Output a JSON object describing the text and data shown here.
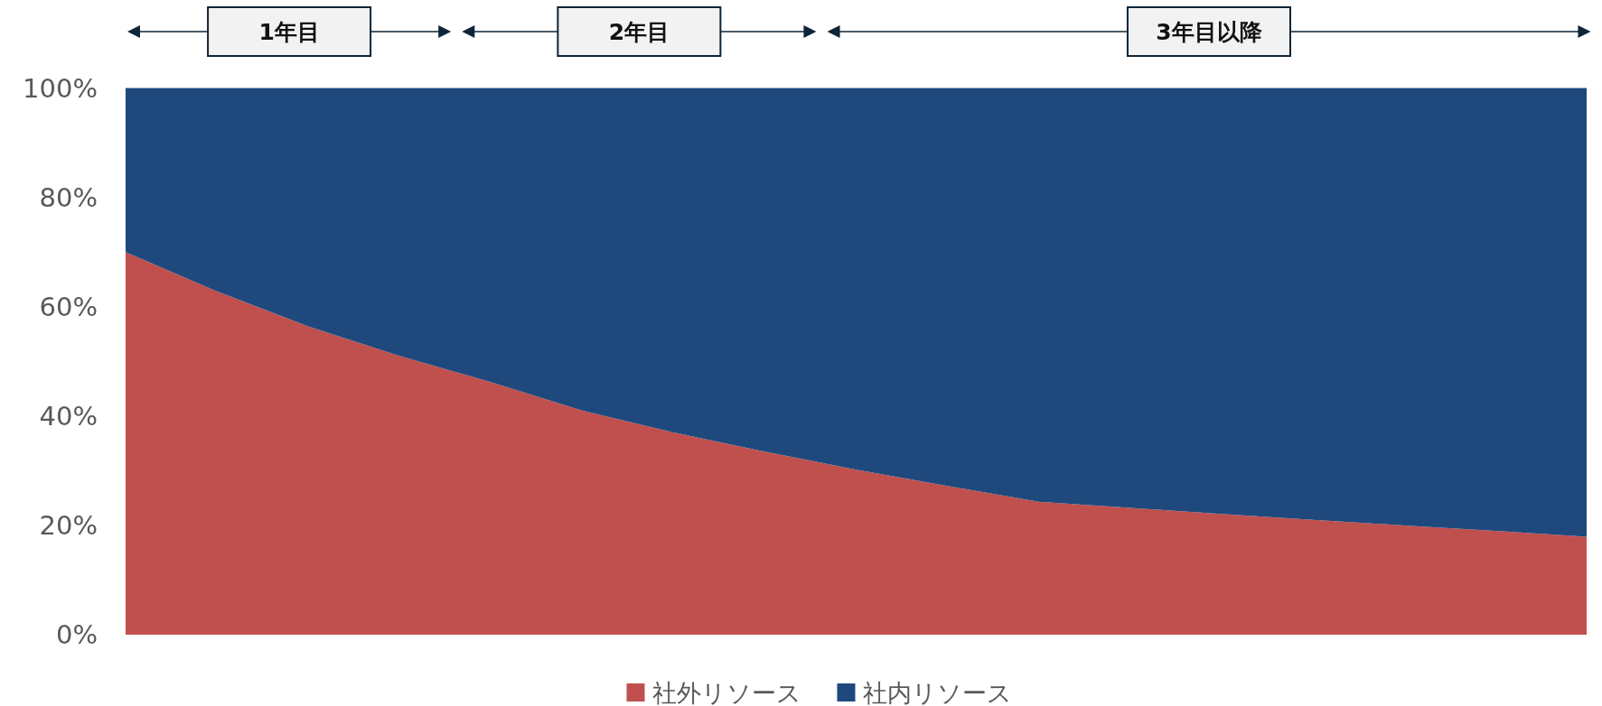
{
  "chart_data": {
    "type": "area",
    "stacked": true,
    "categories": [
      null,
      null,
      null,
      null,
      null,
      null,
      null,
      null,
      null,
      null,
      null,
      null,
      null,
      null,
      null,
      null,
      null
    ],
    "series": [
      {
        "name": "社外リソース",
        "color": "#c0504d",
        "values": [
          70,
          62.8,
          56.4,
          51,
          46.2,
          41,
          37,
          33.5,
          30.2,
          27.2,
          24.3,
          23.2,
          22.1,
          21,
          20,
          19,
          17.9
        ]
      },
      {
        "name": "社内リソース",
        "color": "#1f497d",
        "values": [
          30,
          37.2,
          43.6,
          49,
          53.8,
          59,
          63,
          66.5,
          69.8,
          72.8,
          75.7,
          76.8,
          77.9,
          79,
          80,
          81,
          82.1
        ]
      }
    ],
    "ylim": [
      0,
      100
    ],
    "yticks": [
      {
        "value": 0,
        "label": "0%"
      },
      {
        "value": 20,
        "label": "20%"
      },
      {
        "value": 40,
        "label": "40%"
      },
      {
        "value": 60,
        "label": "60%"
      },
      {
        "value": 80,
        "label": "80%"
      },
      {
        "value": 100,
        "label": "100%"
      }
    ],
    "tick_labels": "y",
    "grid": false,
    "legend": "bottom",
    "annotations": [
      "1年目",
      "2年目",
      "3年目以降"
    ]
  }
}
